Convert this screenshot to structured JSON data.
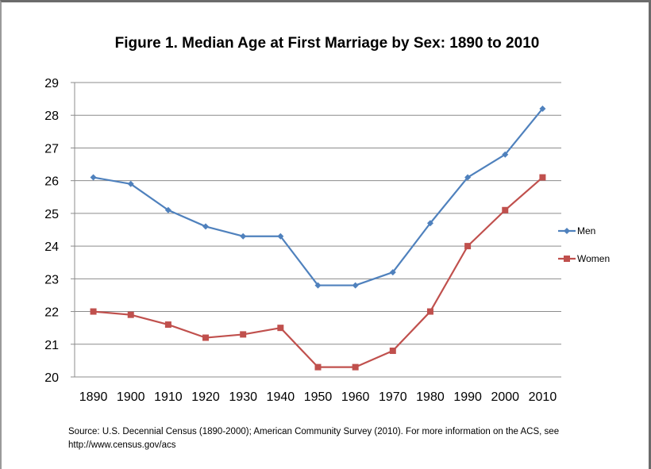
{
  "chart_data": {
    "type": "line",
    "title": "Figure 1.  Median Age at First Marriage by Sex:  1890 to 2010",
    "xlabel": "",
    "ylabel": "",
    "categories": [
      "1890",
      "1900",
      "1910",
      "1920",
      "1930",
      "1940",
      "1950",
      "1960",
      "1970",
      "1980",
      "1990",
      "2000",
      "2010"
    ],
    "y_ticks": [
      "20",
      "21",
      "22",
      "23",
      "24",
      "25",
      "26",
      "27",
      "28",
      "29"
    ],
    "ylim": [
      20,
      29
    ],
    "grid": "horizontal",
    "legend_position": "right",
    "series": [
      {
        "name": "Men",
        "color": "#4F81BD",
        "marker": "diamond",
        "values": [
          26.1,
          25.9,
          25.1,
          24.6,
          24.3,
          24.3,
          22.8,
          22.8,
          23.2,
          24.7,
          26.1,
          26.8,
          28.2
        ]
      },
      {
        "name": "Women",
        "color": "#C0504D",
        "marker": "square",
        "values": [
          22.0,
          21.9,
          21.6,
          21.2,
          21.3,
          21.5,
          20.3,
          20.3,
          20.8,
          22.0,
          24.0,
          25.1,
          26.1
        ]
      }
    ]
  },
  "source_note": "Source:  U.S. Decennial Census (1890-2000); American Community Survey (2010). For more information on the ACS, see http://www.census.gov/acs"
}
